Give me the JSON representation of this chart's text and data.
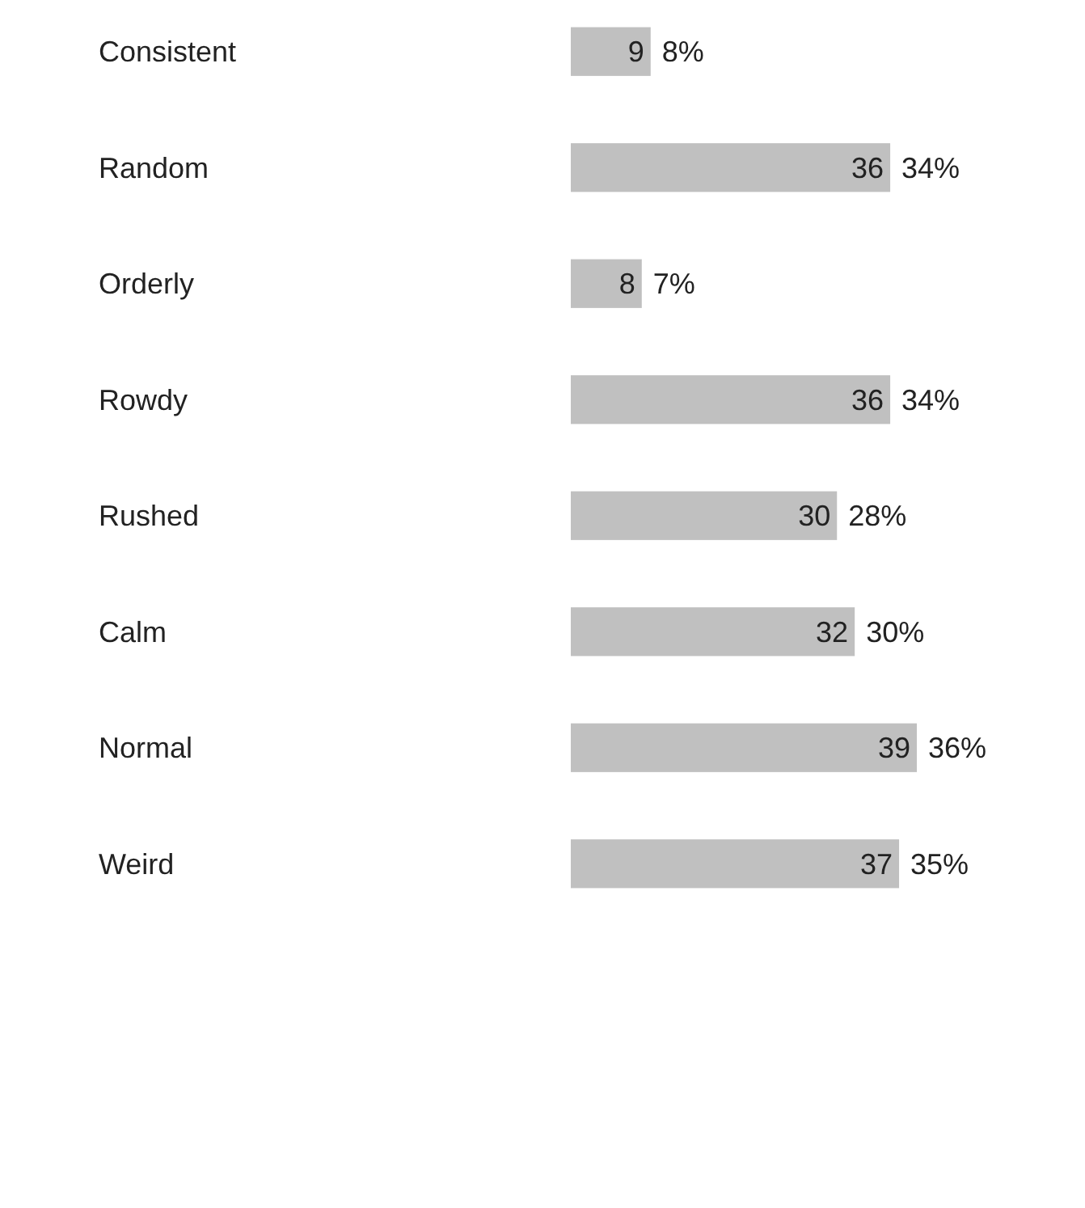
{
  "chart_data": {
    "type": "bar",
    "orientation": "horizontal",
    "categories": [
      "Consistent",
      "Random",
      "Orderly",
      "Rowdy",
      "Rushed",
      "Calm",
      "Normal",
      "Weird"
    ],
    "values": [
      9,
      36,
      8,
      36,
      30,
      32,
      39,
      37
    ],
    "color": "#c0c0c0",
    "data_labels": true,
    "annotations": [
      {
        "text": "8%",
        "x": 9,
        "y": "Consistent"
      },
      {
        "text": "34%",
        "x": 36,
        "y": "Random"
      },
      {
        "text": "7%",
        "x": 8,
        "y": "Orderly"
      },
      {
        "text": "34%",
        "x": 36,
        "y": "Rowdy"
      },
      {
        "text": "28%",
        "x": 30,
        "y": "Rushed"
      },
      {
        "text": "30%",
        "x": 32,
        "y": "Calm"
      },
      {
        "text": "36%",
        "x": 39,
        "y": "Normal"
      },
      {
        "text": "35%",
        "x": 37,
        "y": "Weird"
      }
    ]
  }
}
